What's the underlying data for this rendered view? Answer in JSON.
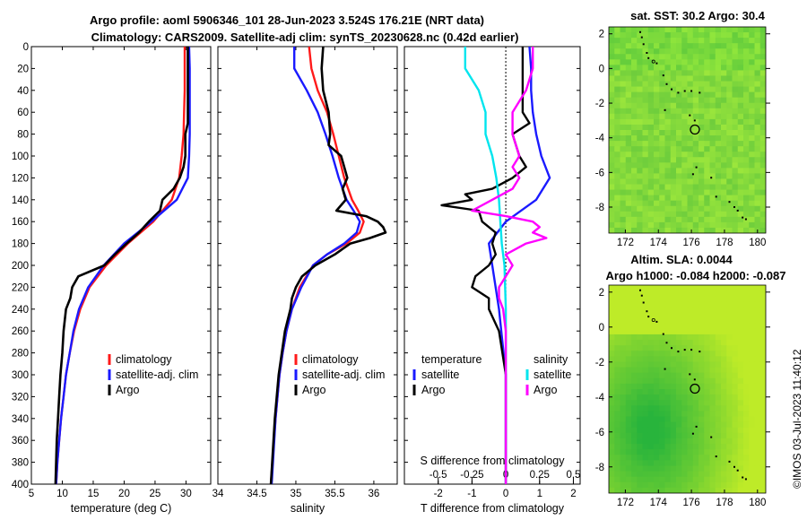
{
  "title_line1": "Argo profile: aoml 5906346_101 28-Jun-2023 3.524S 176.21E (NRT data)",
  "title_line2": "Climatology: CARS2009. Satellite-adj clim: synTS_20230628.nc (0.42d earlier)",
  "colors": {
    "climatology": "#ff1a1a",
    "satellite": "#1a1aff",
    "argo": "#000000",
    "t_sat_diff": "#00e5ee",
    "s_diff": "#ff00ff",
    "s_sat_diff": "#00e5ee"
  },
  "chart_data": [
    {
      "type": "line",
      "name": "temperature",
      "xlabel": "temperature (deg C)",
      "xlim": [
        5,
        34
      ],
      "ylim": [
        0,
        400
      ],
      "xticks": [
        5,
        10,
        15,
        20,
        25,
        30
      ],
      "xtick_labels": [
        "5",
        "10",
        "15",
        "20",
        "25",
        "30"
      ],
      "yticks": [
        0,
        20,
        40,
        60,
        80,
        100,
        120,
        140,
        160,
        180,
        200,
        220,
        240,
        260,
        280,
        300,
        320,
        340,
        360,
        380,
        400
      ],
      "ytick_labels": [
        "0",
        "20",
        "40",
        "60",
        "80",
        "100",
        "120",
        "140",
        "160",
        "180",
        "200",
        "220",
        "240",
        "260",
        "280",
        "300",
        "320",
        "340",
        "360",
        "380",
        "400"
      ],
      "legend": [
        "climatology",
        "satellite-adj. clim",
        "Argo"
      ],
      "series": [
        {
          "name": "climatology",
          "depth": [
            0,
            20,
            40,
            60,
            80,
            100,
            120,
            140,
            160,
            180,
            200,
            220,
            240,
            260,
            280,
            300,
            320,
            340,
            360,
            380,
            400
          ],
          "values": [
            29.8,
            29.8,
            29.8,
            29.7,
            29.6,
            29.3,
            28.9,
            27.7,
            24.7,
            20.6,
            17.1,
            14.4,
            12.9,
            11.9,
            11.2,
            10.6,
            10.2,
            9.8,
            9.5,
            9.2,
            9.0
          ]
        },
        {
          "name": "satellite-adj. clim",
          "depth": [
            0,
            20,
            40,
            60,
            80,
            100,
            120,
            140,
            160,
            180,
            200,
            220,
            240,
            260,
            280,
            300,
            320,
            340,
            360,
            380,
            400
          ],
          "values": [
            30.5,
            30.6,
            30.6,
            30.6,
            30.6,
            30.5,
            30.3,
            28.5,
            24.4,
            20.0,
            16.7,
            14.2,
            12.7,
            11.8,
            11.2,
            10.6,
            10.2,
            9.8,
            9.5,
            9.2,
            9.0
          ]
        },
        {
          "name": "Argo",
          "depth": [
            0,
            20,
            40,
            60,
            70,
            80,
            100,
            110,
            120,
            130,
            140,
            150,
            160,
            170,
            180,
            190,
            200,
            210,
            220,
            230,
            240,
            260,
            280,
            300,
            320,
            340,
            360,
            380,
            400
          ],
          "values": [
            30.3,
            30.3,
            30.3,
            30.3,
            30.3,
            29.9,
            29.9,
            29.6,
            29.0,
            28.0,
            26.2,
            25.8,
            24.0,
            22.4,
            20.4,
            18.5,
            16.8,
            12.6,
            11.6,
            11.3,
            10.6,
            10.2,
            10.0,
            9.7,
            9.5,
            9.3,
            9.1,
            9.0,
            8.9
          ]
        }
      ]
    },
    {
      "type": "line",
      "name": "salinity",
      "xlabel": "salinity",
      "xlim": [
        34,
        36.3
      ],
      "ylim": [
        0,
        400
      ],
      "xticks": [
        34,
        34.5,
        35,
        35.5,
        36
      ],
      "xtick_labels": [
        "34",
        "34.5",
        "35",
        "35.5",
        "36"
      ],
      "legend": [
        "climatology",
        "satellite-adj. clim",
        "Argo"
      ],
      "series": [
        {
          "name": "climatology",
          "depth": [
            0,
            20,
            40,
            60,
            80,
            100,
            120,
            140,
            150,
            160,
            170,
            180,
            190,
            200,
            220,
            240,
            260,
            280,
            300,
            340,
            400
          ],
          "values": [
            35.17,
            35.2,
            35.28,
            35.4,
            35.48,
            35.55,
            35.62,
            35.72,
            35.8,
            35.87,
            35.82,
            35.65,
            35.4,
            35.22,
            35.05,
            34.95,
            34.88,
            34.83,
            34.79,
            34.74,
            34.68
          ]
        },
        {
          "name": "satellite-adj. clim",
          "depth": [
            0,
            20,
            40,
            60,
            80,
            100,
            120,
            140,
            150,
            160,
            170,
            180,
            190,
            200,
            220,
            240,
            260,
            280,
            300,
            340,
            400
          ],
          "values": [
            34.98,
            34.98,
            35.14,
            35.28,
            35.38,
            35.47,
            35.55,
            35.65,
            35.74,
            35.82,
            35.78,
            35.62,
            35.4,
            35.22,
            35.07,
            34.95,
            34.88,
            34.83,
            34.79,
            34.74,
            34.69
          ]
        },
        {
          "name": "Argo",
          "depth": [
            0,
            20,
            40,
            60,
            80,
            90,
            100,
            110,
            120,
            130,
            140,
            150,
            155,
            160,
            165,
            170,
            175,
            180,
            190,
            200,
            210,
            220,
            230,
            240,
            260,
            280,
            300,
            340,
            400
          ],
          "values": [
            35.35,
            35.33,
            35.35,
            35.42,
            35.44,
            35.42,
            35.58,
            35.62,
            35.66,
            35.6,
            35.64,
            35.52,
            35.9,
            36.05,
            36.12,
            36.15,
            35.95,
            35.7,
            35.5,
            35.25,
            35.08,
            35.0,
            34.95,
            34.93,
            34.86,
            34.82,
            34.78,
            34.73,
            34.68
          ]
        }
      ]
    },
    {
      "type": "line",
      "name": "difference from climatology",
      "xlabel": "T difference from climatology",
      "xlabel2": "S difference from climatology",
      "xlim": [
        -3,
        2.2
      ],
      "ylim": [
        0,
        400
      ],
      "xticks": [
        -2,
        -1,
        0,
        1,
        2
      ],
      "xtick_labels": [
        "-2",
        "-1",
        "0",
        "1",
        "2"
      ],
      "s_ticks": [
        -0.5,
        -0.25,
        0,
        0.25,
        0.5
      ],
      "s_tick_labels": [
        "-0.5",
        "-0.25",
        "0",
        "0.25",
        "0.5"
      ],
      "legend_titles": [
        "temperature",
        "salinity"
      ],
      "legend": [
        "satellite",
        "Argo",
        "satellite",
        "Argo"
      ],
      "series": [
        {
          "name": "temperature satellite",
          "depth": [
            0,
            20,
            40,
            60,
            80,
            100,
            120,
            140,
            160,
            180,
            200,
            240,
            300,
            400
          ],
          "values": [
            0.7,
            0.75,
            0.75,
            0.8,
            0.9,
            1.05,
            1.3,
            0.9,
            0.0,
            -0.5,
            -0.4,
            -0.2,
            0.0,
            0.0
          ]
        },
        {
          "name": "temperature Argo",
          "depth": [
            0,
            60,
            70,
            80,
            90,
            100,
            110,
            120,
            130,
            135,
            140,
            145,
            150,
            160,
            170,
            180,
            190,
            200,
            210,
            220,
            230,
            240,
            260,
            280,
            300,
            340,
            400
          ],
          "values": [
            0.5,
            0.5,
            0.7,
            0.2,
            0.3,
            0.4,
            0.6,
            0.2,
            -0.4,
            -1.2,
            -1.0,
            -1.9,
            -0.8,
            -0.7,
            -0.3,
            -0.4,
            -0.3,
            -0.5,
            -0.9,
            -1.0,
            -0.5,
            -0.5,
            -0.2,
            -0.1,
            0.0,
            0.0,
            0.0
          ]
        },
        {
          "name": "salinity satellite",
          "depth": [
            0,
            20,
            40,
            60,
            80,
            100,
            120,
            140,
            160,
            180,
            200,
            240,
            300,
            340,
            400
          ],
          "values": [
            -0.3,
            -0.3,
            -0.2,
            -0.15,
            -0.15,
            -0.1,
            -0.07,
            -0.05,
            -0.04,
            -0.03,
            -0.01,
            0.0,
            0.0,
            0.0,
            0.0
          ]
        },
        {
          "name": "salinity Argo",
          "depth": [
            0,
            20,
            40,
            60,
            80,
            100,
            110,
            120,
            130,
            140,
            150,
            155,
            160,
            165,
            170,
            175,
            180,
            190,
            200,
            210,
            220,
            230,
            240,
            260,
            300,
            400
          ],
          "values": [
            0.2,
            0.2,
            0.15,
            0.05,
            0.05,
            0.1,
            0.05,
            0.1,
            0.05,
            -0.1,
            -0.25,
            0.0,
            0.2,
            0.25,
            0.2,
            0.3,
            0.15,
            0.0,
            0.05,
            0.0,
            -0.05,
            -0.05,
            -0.02,
            0.0,
            0.0,
            0.0
          ]
        }
      ]
    },
    {
      "type": "heatmap",
      "name": "satellite SST map",
      "title": "sat. SST: 30.2 Argo: 30.4",
      "xlim": [
        171,
        180.5
      ],
      "ylim": [
        -9.5,
        2.4
      ],
      "xticks": [
        172,
        174,
        176,
        178,
        180
      ],
      "xtick_labels": [
        "172",
        "174",
        "176",
        "178",
        "180"
      ],
      "yticks": [
        2,
        0,
        -2,
        -4,
        -6,
        -8
      ],
      "ytick_labels": [
        "2",
        "0",
        "-2",
        "-4",
        "-6",
        "-8"
      ],
      "argo_position": [
        176.21,
        -3.524
      ]
    },
    {
      "type": "heatmap",
      "name": "altimetry SLA map",
      "title_line1": "Altim. SLA: 0.0044",
      "title_line2": "Argo h1000: -0.084 h2000: -0.087",
      "xlim": [
        171,
        180.5
      ],
      "ylim": [
        -9.5,
        2.4
      ],
      "xticks": [
        172,
        174,
        176,
        178,
        180
      ],
      "xtick_labels": [
        "172",
        "174",
        "176",
        "178",
        "180"
      ],
      "yticks": [
        2,
        0,
        -2,
        -4,
        -6,
        -8
      ],
      "ytick_labels": [
        "2",
        "0",
        "-2",
        "-4",
        "-6",
        "-8"
      ],
      "argo_position": [
        176.21,
        -3.524
      ]
    }
  ],
  "stamp": "©IMOS 03-Jul-2023 11:40:12"
}
